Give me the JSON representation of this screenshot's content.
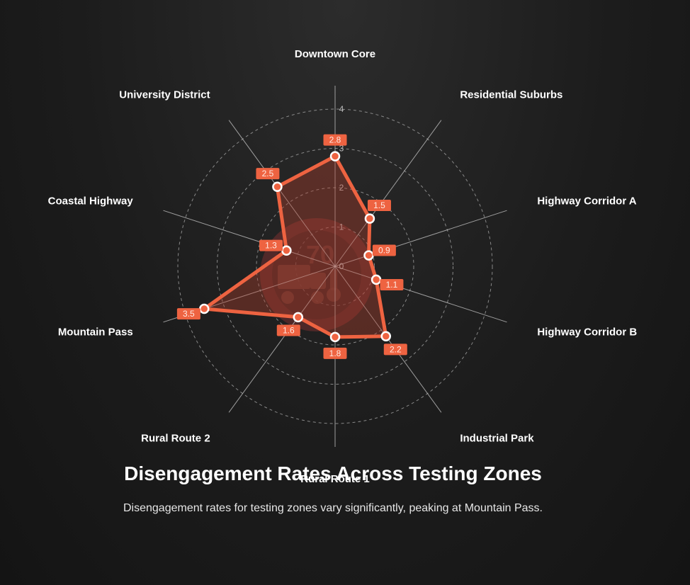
{
  "chart_data": {
    "type": "radar",
    "title": "Disengagement Rates Across Testing Zones",
    "subtitle": "Disengagement rates for testing zones vary significantly, peaking at Mountain Pass.",
    "categories": [
      "Downtown Core",
      "Residential Suburbs",
      "Highway Corridor A",
      "Highway Corridor B",
      "Industrial Park",
      "Rural Route 1",
      "Rural Route 2",
      "Mountain Pass",
      "Coastal Highway",
      "University District"
    ],
    "values": [
      2.8,
      1.5,
      0.9,
      1.1,
      2.2,
      1.8,
      1.6,
      3.5,
      1.3,
      2.5
    ],
    "value_labels": [
      "2.8",
      "1.5",
      "0.9",
      "1.1",
      "2.2",
      "1.8",
      "1.6",
      "3.5",
      "1.3",
      "2.5"
    ],
    "radial_ticks": [
      "0",
      "1",
      "2",
      "3",
      "4"
    ],
    "rmax": 4,
    "grid": true,
    "colors": {
      "series": "#ee6341",
      "fill": "#b4402c",
      "marker_stroke": "#ffffff",
      "grid": "#9a9a9a",
      "spoke": "#c8c8c8",
      "watermark": "#c83c3c"
    },
    "watermark_icon": "autonomous-truck-speed-limit-icon"
  }
}
